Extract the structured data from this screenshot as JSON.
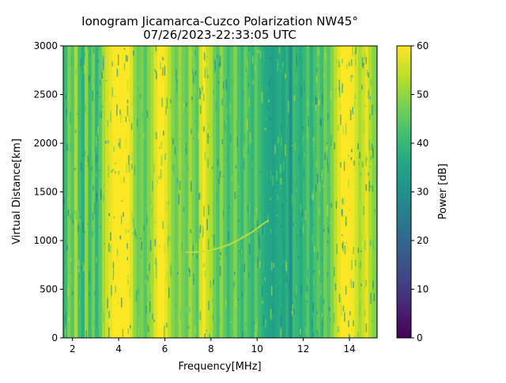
{
  "chart_data": {
    "type": "heatmap",
    "title_line1": "Ionogram Jicamarca-Cuzco Polarization NW45°",
    "title_line2": "07/26/2023-22:33:05 UTC",
    "xlabel": "Frequency[MHz]",
    "ylabel": "Virtual Distance[km]",
    "xlim": [
      1.6,
      15.2
    ],
    "ylim": [
      0,
      3000
    ],
    "xticks": [
      2,
      4,
      6,
      8,
      10,
      12,
      14
    ],
    "yticks": [
      0,
      500,
      1000,
      1500,
      2000,
      2500,
      3000
    ],
    "colorbar": {
      "label": "Power [dB]",
      "range": [
        0,
        60
      ],
      "ticks": [
        0,
        10,
        20,
        30,
        40,
        50,
        60
      ],
      "colormap": "viridis"
    },
    "columns": [
      {
        "f": 1.7,
        "db": 40
      },
      {
        "f": 1.85,
        "db": 48
      },
      {
        "f": 2.0,
        "db": 44
      },
      {
        "f": 2.15,
        "db": 52
      },
      {
        "f": 2.3,
        "db": 42
      },
      {
        "f": 2.45,
        "db": 38
      },
      {
        "f": 2.6,
        "db": 50
      },
      {
        "f": 2.75,
        "db": 41
      },
      {
        "f": 2.9,
        "db": 47
      },
      {
        "f": 3.05,
        "db": 39
      },
      {
        "f": 3.2,
        "db": 45
      },
      {
        "f": 3.35,
        "db": 52
      },
      {
        "f": 3.5,
        "db": 56
      },
      {
        "f": 3.65,
        "db": 58
      },
      {
        "f": 3.8,
        "db": 60
      },
      {
        "f": 3.95,
        "db": 60
      },
      {
        "f": 4.1,
        "db": 60
      },
      {
        "f": 4.25,
        "db": 60
      },
      {
        "f": 4.4,
        "db": 60
      },
      {
        "f": 4.55,
        "db": 57
      },
      {
        "f": 4.7,
        "db": 50
      },
      {
        "f": 4.85,
        "db": 46
      },
      {
        "f": 5.0,
        "db": 48
      },
      {
        "f": 5.15,
        "db": 44
      },
      {
        "f": 5.3,
        "db": 49
      },
      {
        "f": 5.45,
        "db": 52
      },
      {
        "f": 5.6,
        "db": 57
      },
      {
        "f": 5.75,
        "db": 60
      },
      {
        "f": 5.9,
        "db": 60
      },
      {
        "f": 6.05,
        "db": 58
      },
      {
        "f": 6.2,
        "db": 54
      },
      {
        "f": 6.35,
        "db": 49
      },
      {
        "f": 6.5,
        "db": 46
      },
      {
        "f": 6.65,
        "db": 51
      },
      {
        "f": 6.8,
        "db": 47
      },
      {
        "f": 6.95,
        "db": 45
      },
      {
        "f": 7.1,
        "db": 52
      },
      {
        "f": 7.25,
        "db": 48
      },
      {
        "f": 7.4,
        "db": 44
      },
      {
        "f": 7.55,
        "db": 56
      },
      {
        "f": 7.7,
        "db": 59
      },
      {
        "f": 7.85,
        "db": 55
      },
      {
        "f": 8.0,
        "db": 53
      },
      {
        "f": 8.15,
        "db": 47
      },
      {
        "f": 8.3,
        "db": 43
      },
      {
        "f": 8.45,
        "db": 50
      },
      {
        "f": 8.6,
        "db": 45
      },
      {
        "f": 8.75,
        "db": 41
      },
      {
        "f": 8.9,
        "db": 44
      },
      {
        "f": 9.05,
        "db": 49
      },
      {
        "f": 9.2,
        "db": 43
      },
      {
        "f": 9.35,
        "db": 40
      },
      {
        "f": 9.5,
        "db": 46
      },
      {
        "f": 9.65,
        "db": 42
      },
      {
        "f": 9.8,
        "db": 39
      },
      {
        "f": 9.95,
        "db": 45
      },
      {
        "f": 10.1,
        "db": 41
      },
      {
        "f": 10.25,
        "db": 38
      },
      {
        "f": 10.4,
        "db": 36
      },
      {
        "f": 10.55,
        "db": 35
      },
      {
        "f": 10.7,
        "db": 34
      },
      {
        "f": 10.85,
        "db": 36
      },
      {
        "f": 11.0,
        "db": 37
      },
      {
        "f": 11.15,
        "db": 35
      },
      {
        "f": 11.3,
        "db": 38
      },
      {
        "f": 11.45,
        "db": 30
      },
      {
        "f": 11.6,
        "db": 41
      },
      {
        "f": 11.75,
        "db": 39
      },
      {
        "f": 11.9,
        "db": 37
      },
      {
        "f": 12.05,
        "db": 40
      },
      {
        "f": 12.2,
        "db": 44
      },
      {
        "f": 12.35,
        "db": 38
      },
      {
        "f": 12.5,
        "db": 42
      },
      {
        "f": 12.65,
        "db": 45
      },
      {
        "f": 12.8,
        "db": 41
      },
      {
        "f": 12.95,
        "db": 47
      },
      {
        "f": 13.1,
        "db": 44
      },
      {
        "f": 13.25,
        "db": 49
      },
      {
        "f": 13.4,
        "db": 54
      },
      {
        "f": 13.55,
        "db": 58
      },
      {
        "f": 13.7,
        "db": 60
      },
      {
        "f": 13.85,
        "db": 60
      },
      {
        "f": 14.0,
        "db": 60
      },
      {
        "f": 14.15,
        "db": 59
      },
      {
        "f": 14.3,
        "db": 56
      },
      {
        "f": 14.45,
        "db": 52
      },
      {
        "f": 14.6,
        "db": 55
      },
      {
        "f": 14.75,
        "db": 58
      },
      {
        "f": 14.9,
        "db": 53
      },
      {
        "f": 15.05,
        "db": 49
      }
    ],
    "trace": [
      {
        "f": 6.9,
        "km": 880
      },
      {
        "f": 7.3,
        "km": 880
      },
      {
        "f": 7.8,
        "km": 890
      },
      {
        "f": 8.3,
        "km": 920
      },
      {
        "f": 8.8,
        "km": 960
      },
      {
        "f": 9.3,
        "km": 1020
      },
      {
        "f": 9.8,
        "km": 1090
      },
      {
        "f": 10.2,
        "km": 1160
      },
      {
        "f": 10.5,
        "km": 1210
      }
    ]
  }
}
